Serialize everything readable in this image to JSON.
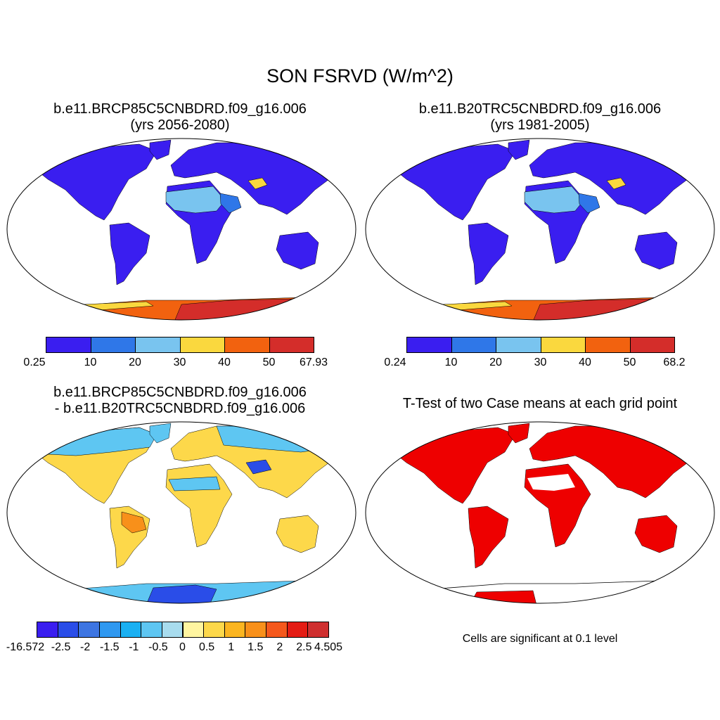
{
  "main_title": "SON FSRVD (W/m^2)",
  "panels": [
    {
      "title_line1": "b.e11.BRCP85C5CNBDRD.f09_g16.006",
      "title_line2": "(yrs 2056-2080)"
    },
    {
      "title_line1": "b.e11.B20TRC5CNBDRD.f09_g16.006",
      "title_line2": "(yrs 1981-2005)"
    },
    {
      "title_line1": "b.e11.BRCP85C5CNBDRD.f09_g16.006",
      "title_line2": "- b.e11.B20TRC5CNBDRD.f09_g16.006"
    },
    {
      "title_line1": "T-Test of two Case means at each grid point"
    }
  ],
  "significance_note": "Cells are significant at 0.1 level",
  "colorbars": [
    {
      "labels": [
        "0.25",
        "10",
        "20",
        "30",
        "40",
        "50",
        "67.93"
      ],
      "colors": [
        "#3a1ef0",
        "#2f77e8",
        "#79c4ef",
        "#fad83e",
        "#f2620f",
        "#d42d2a"
      ]
    },
    {
      "labels": [
        "0.24",
        "10",
        "20",
        "30",
        "40",
        "50",
        "68.2"
      ],
      "colors": [
        "#3a1ef0",
        "#2f77e8",
        "#79c4ef",
        "#fad83e",
        "#f2620f",
        "#d42d2a"
      ]
    },
    {
      "labels": [
        "-16.572",
        "-2.5",
        "-2",
        "-1.5",
        "-1",
        "-0.5",
        "0",
        "0.5",
        "1",
        "1.5",
        "2",
        "2.5",
        "4.505"
      ],
      "colors": [
        "#3a1ef0",
        "#2a4de8",
        "#3d75e2",
        "#2f98f0",
        "#1ab0f2",
        "#5ec6f2",
        "#a8dcee",
        "#fff5a0",
        "#fdd84a",
        "#fbb520",
        "#f8901a",
        "#f5581c",
        "#e41c14",
        "#cf2f2f"
      ]
    }
  ],
  "map_colors": {
    "land_abs": "#3a1ef0",
    "desert_abs": "#79c4ef",
    "desert_mid": "#2f77e8",
    "tibet": "#fad83e",
    "antarctica_high": "#d42d2a",
    "antarctica_mid": "#f2620f",
    "antarctica_rim": "#fad83e",
    "diff_pos": "#fdd84a",
    "diff_pos_strong": "#f8901a",
    "diff_neg": "#5ec6f2",
    "diff_neg_strong": "#2f98f0",
    "diff_tibet": "#2a4de8",
    "ttest": "#ee0000"
  }
}
